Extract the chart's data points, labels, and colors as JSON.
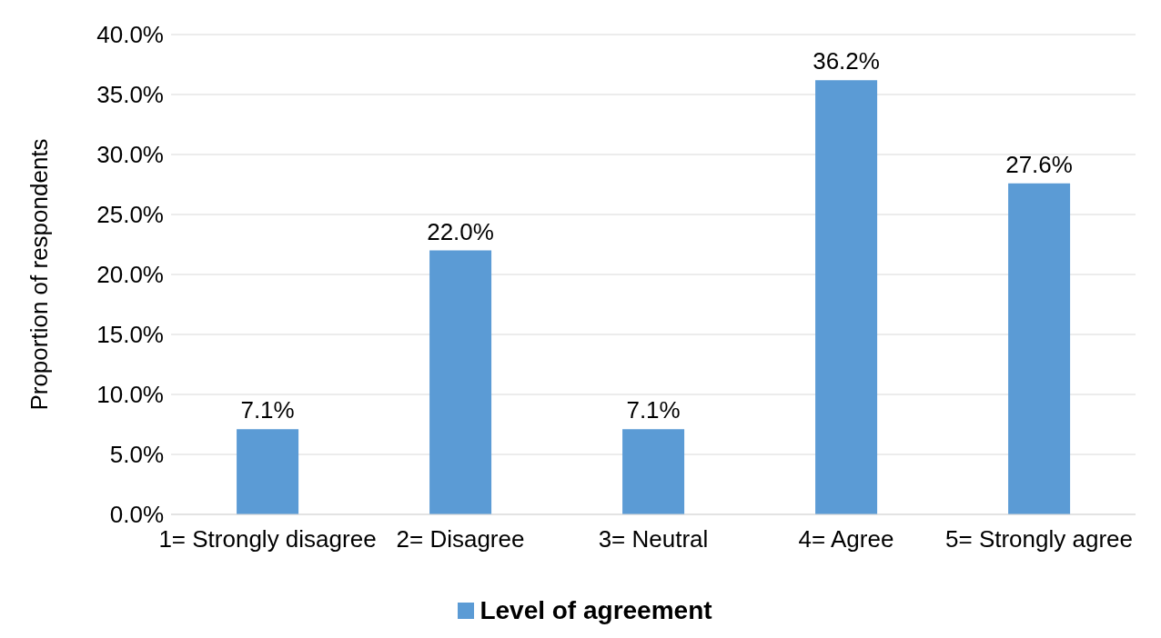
{
  "chart_data": {
    "type": "bar",
    "ylabel": "Proportion of respondents",
    "categories": [
      "1= Strongly disagree",
      "2= Disagree",
      "3= Neutral",
      "4= Agree",
      "5= Strongly agree"
    ],
    "series": [
      {
        "name": "Level of agreement",
        "color": "#5b9bd5",
        "values": [
          7.1,
          22.0,
          7.1,
          36.2,
          27.6
        ],
        "value_labels": [
          "7.1%",
          "22.0%",
          "7.1%",
          "36.2%",
          "27.6%"
        ]
      }
    ],
    "ylim": [
      0,
      40
    ],
    "yticks": [
      {
        "value": 0,
        "label": "0.0%"
      },
      {
        "value": 5,
        "label": "5.0%"
      },
      {
        "value": 10,
        "label": "10.0%"
      },
      {
        "value": 15,
        "label": "15.0%"
      },
      {
        "value": 20,
        "label": "20.0%"
      },
      {
        "value": 25,
        "label": "25.0%"
      },
      {
        "value": 30,
        "label": "30.0%"
      },
      {
        "value": 35,
        "label": "35.0%"
      },
      {
        "value": 40,
        "label": "40.0%"
      }
    ],
    "grid": "y",
    "legend": "bottom"
  }
}
